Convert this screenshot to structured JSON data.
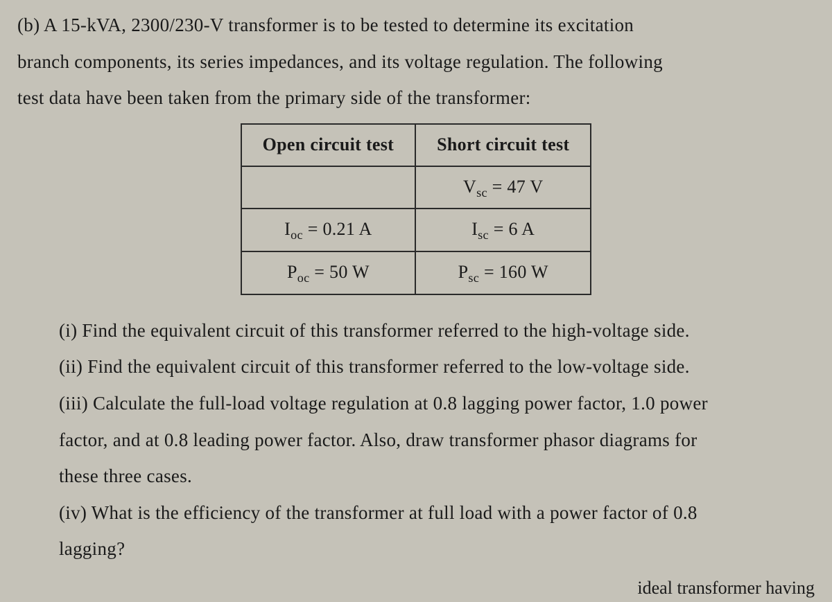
{
  "problem": {
    "intro_line1": "(b) A 15-kVA, 2300/230-V transformer is to be tested to determine its excitation",
    "intro_line2": "branch components, its series impedances, and its voltage regulation. The following",
    "intro_line3": "test data have been taken from the primary side of the transformer:"
  },
  "table": {
    "header_col1": "Open circuit test",
    "header_col2": "Short circuit test",
    "row1_col1": "",
    "row1_col2_prefix": "V",
    "row1_col2_sub": "sc",
    "row1_col2_suffix": " = 47 V",
    "row2_col1_prefix": "I",
    "row2_col1_sub": "oc",
    "row2_col1_suffix": " = 0.21 A",
    "row2_col2_prefix": "I",
    "row2_col2_sub": "sc",
    "row2_col2_suffix": " = 6 A",
    "row3_col1_prefix": "P",
    "row3_col1_sub": "oc",
    "row3_col1_suffix": " = 50 W",
    "row3_col2_prefix": "P",
    "row3_col2_sub": "sc",
    "row3_col2_suffix": " = 160 W"
  },
  "questions": {
    "q1": "(i) Find the equivalent circuit of this transformer referred to the high-voltage side.",
    "q2": "(ii) Find the equivalent circuit of this transformer referred to the low-voltage side.",
    "q3_line1": "(iii) Calculate the full-load voltage regulation at 0.8 lagging power factor, 1.0 power",
    "q3_line2": "factor, and at 0.8 leading power factor. Also, draw transformer phasor diagrams for",
    "q3_line3": "these three cases.",
    "q4_line1": "(iv) What is the efficiency of the transformer at full load with a power factor of 0.8",
    "q4_line2": "lagging?"
  },
  "fragment": "ideal transformer having"
}
